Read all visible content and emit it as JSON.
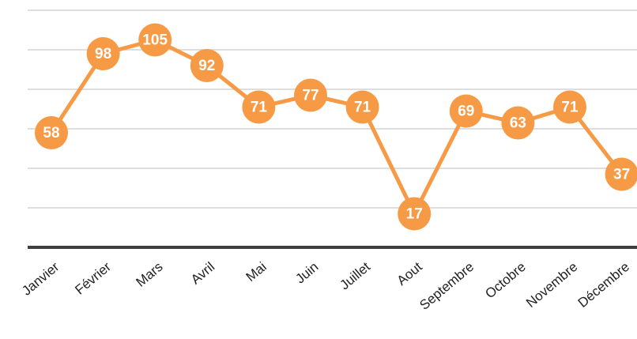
{
  "chart_data": {
    "type": "line",
    "categories": [
      "Janvier",
      "Février",
      "Mars",
      "Avril",
      "Mai",
      "Juin",
      "Juillet",
      "Aout",
      "Septembre",
      "Octobre",
      "Novembre",
      "Décembre"
    ],
    "values": [
      58,
      98,
      105,
      92,
      71,
      77,
      71,
      17,
      69,
      63,
      71,
      37
    ],
    "color": "#f79a45",
    "ylim": [
      0,
      120
    ],
    "yticks": [
      0,
      20,
      40,
      60,
      80,
      100,
      120
    ],
    "grid": true
  }
}
